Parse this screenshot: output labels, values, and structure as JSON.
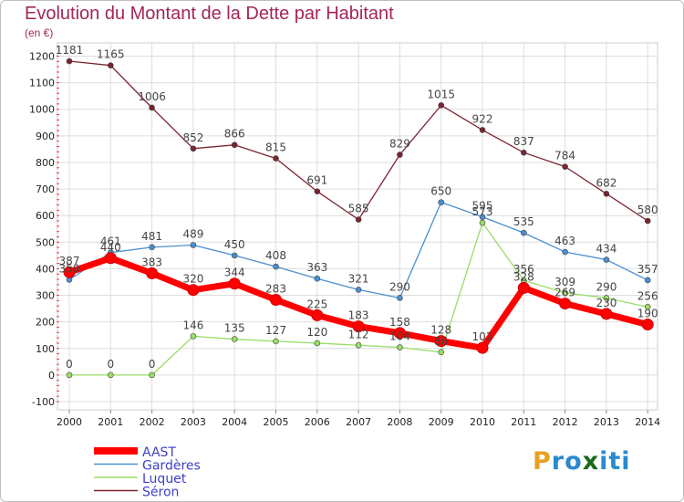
{
  "chart_data": {
    "type": "line",
    "title": "Evolution du Montant de la Dette par Habitant",
    "unit_label": "(en €)",
    "x": [
      "2000",
      "2001",
      "2002",
      "2003",
      "2004",
      "2005",
      "2006",
      "2007",
      "2008",
      "2009",
      "2010",
      "2011",
      "2012",
      "2013",
      "2014"
    ],
    "y_ticks": [
      1200,
      1100,
      1000,
      900,
      800,
      700,
      600,
      500,
      400,
      300,
      200,
      100,
      0,
      -100
    ],
    "ylim": [
      -100,
      1200
    ],
    "grid": true,
    "legend_position": "bottom-left",
    "series": [
      {
        "name": "AAST",
        "color": "#ff0000",
        "values": [
          387,
          440,
          383,
          320,
          344,
          283,
          225,
          183,
          158,
          128,
          102,
          328,
          269,
          230,
          190
        ],
        "labels": [
          "387",
          "440",
          "383",
          "320",
          "344",
          "283",
          "225",
          "183",
          "158",
          "128",
          "102",
          "328",
          "269",
          "230",
          "190"
        ]
      },
      {
        "name": "Gardères",
        "color": "#4a8fd0",
        "values": [
          359,
          461,
          481,
          489,
          450,
          408,
          363,
          321,
          290,
          650,
          595,
          535,
          463,
          434,
          357
        ],
        "labels": [
          "359",
          "461",
          "481",
          "489",
          "450",
          "408",
          "363",
          "321",
          "290",
          "650",
          "595",
          "535",
          "463",
          "434",
          "357"
        ]
      },
      {
        "name": "Luquet",
        "color": "#99dd66",
        "values": [
          0,
          0,
          0,
          146,
          135,
          127,
          120,
          112,
          104,
          86,
          573,
          356,
          309,
          290,
          256
        ],
        "labels": [
          "0",
          "0",
          "0",
          "146",
          "135",
          "127",
          "120",
          "112",
          "104",
          "86",
          "573",
          "356",
          "309",
          "290",
          "256"
        ]
      },
      {
        "name": "Séron",
        "color": "#7b2430",
        "values": [
          1181,
          1165,
          1006,
          852,
          866,
          815,
          691,
          585,
          829,
          1015,
          922,
          837,
          784,
          682,
          580
        ],
        "labels": [
          "1181",
          "1165",
          "1006",
          "852",
          "866",
          "815",
          "691",
          "585",
          "829",
          "1015",
          "922",
          "837",
          "784",
          "682",
          "580"
        ]
      }
    ]
  },
  "logo": {
    "letters": [
      "P",
      "r",
      "o",
      "x",
      "i",
      "t",
      "i"
    ],
    "colors": [
      "#e8a020",
      "#2a8ad0",
      "#2a8ad0",
      "#1a6a1a",
      "#2a8ad0",
      "#2a8ad0",
      "#2a8ad0"
    ]
  }
}
